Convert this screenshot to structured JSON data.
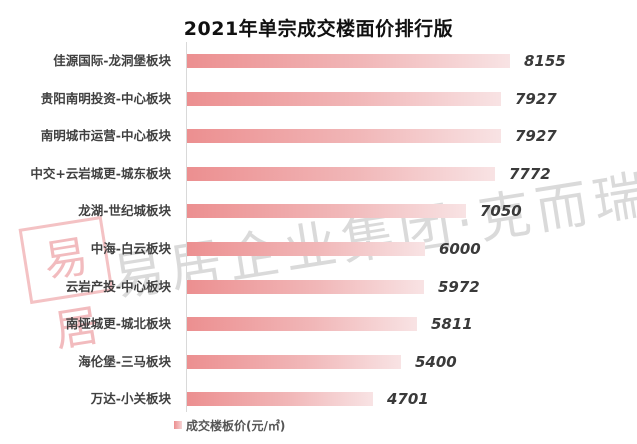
{
  "title": "2021年单宗成交楼面价排行版",
  "legend": {
    "label": "成交楼板价(元/㎡)",
    "color": "#ec8f90"
  },
  "watermark": {
    "seal": "易居",
    "text": "易居企业集团·克而瑞"
  },
  "chart_data": {
    "type": "bar",
    "orientation": "horizontal",
    "title": "2021年单宗成交楼面价排行版",
    "xlabel": "",
    "ylabel": "",
    "grid": false,
    "legend_position": "bottom",
    "categories": [
      "佳源国际-龙洞堡板块",
      "贵阳南明投资-中心板块",
      "南明城市运营-中心板块",
      "中交+云岩城更-城东板块",
      "龙湖-世纪城板块",
      "中海-白云板块",
      "云岩产投-中心板块",
      "南垭城更-城北板块",
      "海伦堡-三马板块",
      "万达-小关板块"
    ],
    "series": [
      {
        "name": "成交楼板价(元/㎡)",
        "values": [
          8155,
          7927,
          7927,
          7772,
          7050,
          6000,
          5972,
          5811,
          5400,
          4701
        ]
      }
    ],
    "value_labels": [
      "8155",
      "7927",
      "7927",
      "7772",
      "7050",
      "6000",
      "5972",
      "5811",
      "5400",
      "4701"
    ]
  }
}
